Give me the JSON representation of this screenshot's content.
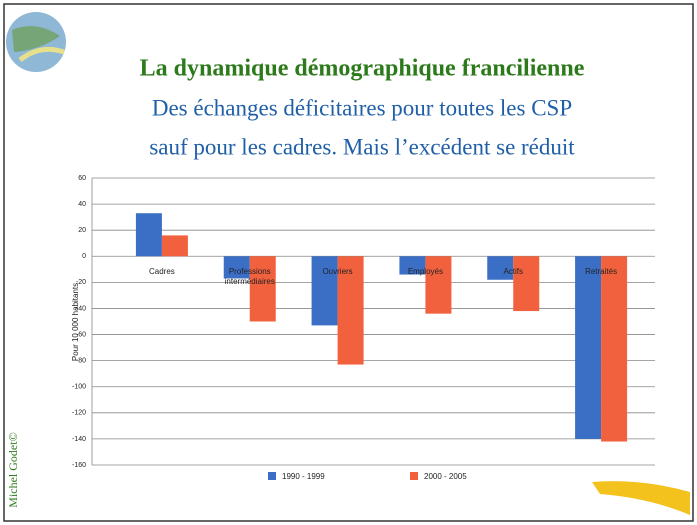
{
  "header": {
    "title": "La dynamique démographique francilienne",
    "subtitle": [
      "Des échanges déficitaires pour toutes les CSP",
      "sauf pour les cadres. Mais l’excédent se réduit"
    ],
    "author": "Michel Godet©"
  },
  "chart_data": {
    "type": "bar",
    "y_label": "Pour 10 000 habitants",
    "categories": [
      "Cadres",
      "Professions intermédiaires",
      "Ouvriers",
      "Employés",
      "Actifs",
      "Retraités"
    ],
    "series": [
      {
        "name": "1990 - 1999",
        "color": "#3b6fc6",
        "values": [
          33,
          -17,
          -53,
          -14,
          -18,
          -140
        ]
      },
      {
        "name": "2000 - 2005",
        "color": "#f2613d",
        "values": [
          16,
          -50,
          -83,
          -44,
          -42,
          -142
        ]
      }
    ],
    "ylim": [
      -160,
      60
    ],
    "yticks": [
      -160,
      -140,
      -120,
      -100,
      -80,
      -60,
      -40,
      -20,
      0,
      20,
      40,
      60
    ],
    "grid": true
  }
}
